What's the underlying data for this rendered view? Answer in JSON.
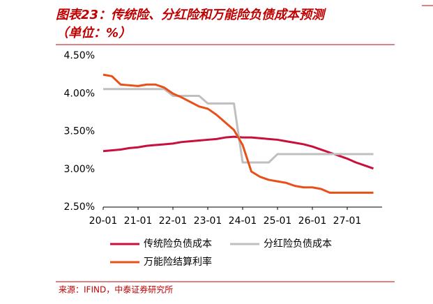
{
  "chart_data": {
    "type": "line",
    "title": "图表23：传统险、分红险和万能险负债成本预测",
    "subtitle": "（单位：%）",
    "source": "来源：IFIND，中泰证券研究所",
    "categories": [
      "20-01",
      null,
      null,
      null,
      "21-01",
      null,
      null,
      null,
      "22-01",
      null,
      null,
      null,
      "23-01",
      null,
      null,
      null,
      "24-01",
      null,
      null,
      null,
      "25-01",
      null,
      null,
      null,
      "26-01",
      null,
      null,
      null,
      "27-01",
      null,
      null,
      null
    ],
    "series": [
      {
        "name": "传统险负债成本",
        "color": "#c8103c",
        "values": [
          3.24,
          3.25,
          3.26,
          3.28,
          3.29,
          3.31,
          3.32,
          3.33,
          3.34,
          3.36,
          3.37,
          3.38,
          3.39,
          3.4,
          3.42,
          3.43,
          3.42,
          3.42,
          3.41,
          3.4,
          3.39,
          3.37,
          3.35,
          3.33,
          3.3,
          3.26,
          3.22,
          3.18,
          3.14,
          3.09,
          3.05,
          3.01
        ]
      },
      {
        "name": "分红险负债成本",
        "color": "#bfbfbf",
        "values": [
          4.06,
          4.06,
          4.06,
          4.06,
          4.06,
          4.06,
          4.06,
          4.06,
          3.97,
          3.97,
          3.97,
          3.97,
          3.87,
          3.87,
          3.87,
          3.87,
          3.09,
          3.09,
          3.09,
          3.09,
          3.2,
          3.2,
          3.2,
          3.2,
          3.2,
          3.2,
          3.2,
          3.2,
          3.2,
          3.2,
          3.2,
          3.2
        ]
      },
      {
        "name": "万能险结算利率",
        "color": "#e8501a",
        "values": [
          4.25,
          4.23,
          4.12,
          4.11,
          4.1,
          4.12,
          4.12,
          4.08,
          4.0,
          3.95,
          3.89,
          3.83,
          3.8,
          3.72,
          3.62,
          3.52,
          3.32,
          2.97,
          2.9,
          2.86,
          2.84,
          2.82,
          2.78,
          2.76,
          2.76,
          2.74,
          2.69,
          2.69,
          2.69,
          2.69,
          2.69,
          2.69
        ]
      }
    ],
    "ylim": [
      2.5,
      4.5
    ],
    "yticks": [
      {
        "value": 2.5,
        "label": "2.50%"
      },
      {
        "value": 3.0,
        "label": "3.00%"
      },
      {
        "value": 3.5,
        "label": "3.50%"
      },
      {
        "value": 4.0,
        "label": "4.00%"
      },
      {
        "value": 4.5,
        "label": "4.50%"
      }
    ],
    "grid": false
  }
}
